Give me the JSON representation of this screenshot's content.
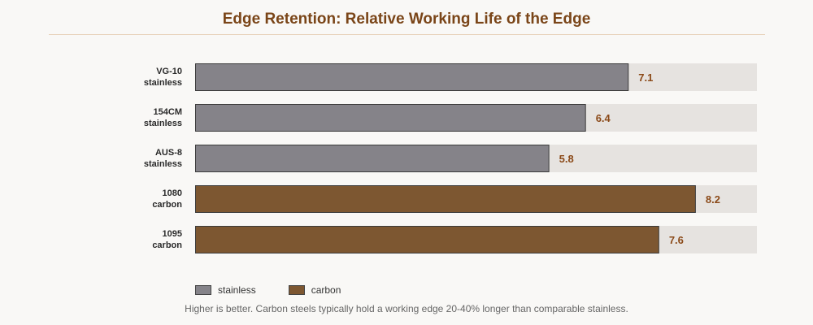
{
  "chart_data": {
    "type": "bar",
    "orientation": "horizontal",
    "title": "Edge Retention: Relative Working Life of the Edge",
    "categories": [
      {
        "name": "VG-10",
        "group": "stainless"
      },
      {
        "name": "154CM",
        "group": "stainless"
      },
      {
        "name": "AUS-8",
        "group": "stainless"
      },
      {
        "name": "1080",
        "group": "carbon"
      },
      {
        "name": "1095",
        "group": "carbon"
      }
    ],
    "values": [
      7.1,
      6.4,
      5.8,
      8.2,
      7.6
    ],
    "xlim": [
      0,
      9.2
    ],
    "grid": false,
    "legend": {
      "position": "bottom-left",
      "entries": [
        {
          "name": "stainless",
          "color": "#858389"
        },
        {
          "name": "carbon",
          "color": "#7d5731"
        }
      ]
    },
    "footnote": "Higher is better. Carbon steels typically hold a working edge 20-40% longer than comparable stainless."
  },
  "colors": {
    "stainless": "#858389",
    "carbon": "#7d5731",
    "track": "#e6e3e0",
    "value_label": "#8b4a19",
    "title": "#7a4518"
  }
}
